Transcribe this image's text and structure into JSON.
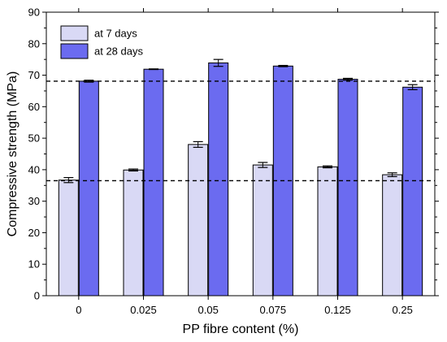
{
  "chart_data": {
    "type": "bar",
    "title": "",
    "xlabel": "PP fibre content (%)",
    "ylabel": "Compressive strength (MPa)",
    "ylim": [
      0,
      90
    ],
    "yticks": [
      0,
      10,
      20,
      30,
      40,
      50,
      60,
      70,
      80,
      90
    ],
    "categories": [
      "0",
      "0.025",
      "0.05",
      "0.075",
      "0.125",
      "0.25"
    ],
    "series": [
      {
        "name": "at 7 days",
        "color": "#d9d9f5",
        "values": [
          36.7,
          39.9,
          48.0,
          41.5,
          40.9,
          38.4
        ],
        "errors": [
          0.8,
          0.3,
          0.9,
          0.8,
          0.3,
          0.6
        ]
      },
      {
        "name": "at 28 days",
        "color": "#6b6bf0",
        "values": [
          68.1,
          71.9,
          73.9,
          72.9,
          68.7,
          66.2
        ],
        "errors": [
          0.3,
          0.1,
          1.1,
          0.2,
          0.3,
          0.8
        ]
      }
    ],
    "reference_lines": [
      68.1,
      36.5
    ],
    "legend_position": "top-left",
    "grid": false
  }
}
